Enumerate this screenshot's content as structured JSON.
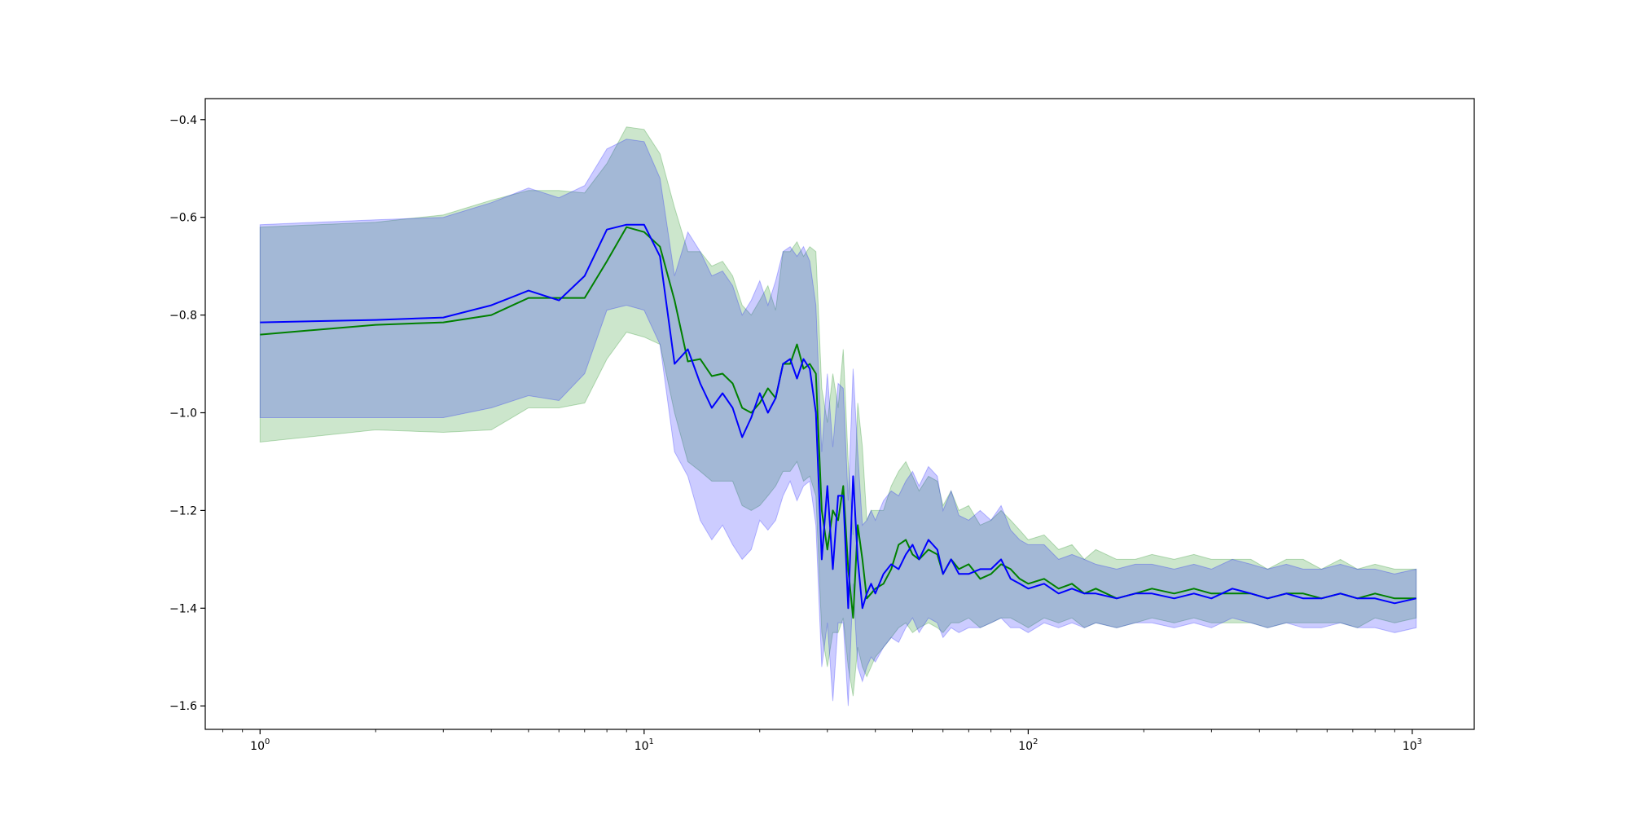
{
  "chart_data": {
    "type": "line",
    "title": "",
    "xlabel": "",
    "ylabel": "",
    "xscale": "log",
    "xlim": [
      0.72,
      1450
    ],
    "ylim": [
      -1.648,
      -0.357
    ],
    "grid": false,
    "legend": "none",
    "x_ticks": [
      1,
      10,
      100,
      1000
    ],
    "x_tick_labels": [
      {
        "base": "10",
        "exp": "0"
      },
      {
        "base": "10",
        "exp": "1"
      },
      {
        "base": "10",
        "exp": "2"
      },
      {
        "base": "10",
        "exp": "3"
      }
    ],
    "y_ticks": [
      -0.4,
      -0.6,
      -0.8,
      -1.0,
      -1.2,
      -1.4,
      -1.6
    ],
    "y_tick_labels": [
      "−0.4",
      "−0.6",
      "−0.8",
      "−1.0",
      "−1.2",
      "−1.4",
      "−1.6"
    ],
    "series": [
      {
        "color": "#008000",
        "band_color": "#008000",
        "band_opacity": 0.2,
        "x": [
          1,
          2,
          3,
          4,
          5,
          6,
          7,
          8,
          9,
          10,
          11,
          12,
          13,
          14,
          15,
          16,
          17,
          18,
          19,
          20,
          21,
          22,
          23,
          24,
          25,
          26,
          27,
          28,
          29,
          30,
          31,
          32,
          33,
          34,
          35,
          36,
          37,
          38,
          39,
          40,
          42,
          44,
          46,
          48,
          50,
          52,
          55,
          58,
          60,
          63,
          66,
          70,
          75,
          80,
          85,
          90,
          95,
          100,
          110,
          120,
          130,
          140,
          150,
          170,
          190,
          210,
          240,
          270,
          300,
          340,
          380,
          420,
          470,
          520,
          580,
          650,
          720,
          800,
          900,
          1024
        ],
        "y": [
          -0.84,
          -0.82,
          -0.815,
          -0.8,
          -0.765,
          -0.765,
          -0.765,
          -0.69,
          -0.62,
          -0.63,
          -0.66,
          -0.77,
          -0.895,
          -0.89,
          -0.925,
          -0.92,
          -0.94,
          -0.99,
          -1.0,
          -0.98,
          -0.95,
          -0.97,
          -0.9,
          -0.9,
          -0.86,
          -0.91,
          -0.9,
          -0.92,
          -1.2,
          -1.28,
          -1.2,
          -1.22,
          -1.15,
          -1.32,
          -1.42,
          -1.23,
          -1.3,
          -1.38,
          -1.37,
          -1.36,
          -1.35,
          -1.32,
          -1.27,
          -1.26,
          -1.29,
          -1.3,
          -1.28,
          -1.29,
          -1.33,
          -1.3,
          -1.32,
          -1.31,
          -1.34,
          -1.33,
          -1.31,
          -1.32,
          -1.34,
          -1.35,
          -1.34,
          -1.36,
          -1.35,
          -1.37,
          -1.36,
          -1.38,
          -1.37,
          -1.36,
          -1.37,
          -1.36,
          -1.37,
          -1.37,
          -1.37,
          -1.38,
          -1.37,
          -1.37,
          -1.38,
          -1.37,
          -1.38,
          -1.37,
          -1.38,
          -1.38
        ],
        "lower": [
          -1.06,
          -1.035,
          -1.04,
          -1.035,
          -0.99,
          -0.99,
          -0.98,
          -0.89,
          -0.835,
          -0.845,
          -0.86,
          -1.0,
          -1.1,
          -1.12,
          -1.14,
          -1.14,
          -1.14,
          -1.19,
          -1.2,
          -1.19,
          -1.17,
          -1.15,
          -1.12,
          -1.12,
          -1.1,
          -1.14,
          -1.13,
          -1.17,
          -1.45,
          -1.52,
          -1.45,
          -1.45,
          -1.42,
          -1.52,
          -1.58,
          -1.48,
          -1.52,
          -1.54,
          -1.52,
          -1.5,
          -1.48,
          -1.46,
          -1.44,
          -1.43,
          -1.45,
          -1.44,
          -1.43,
          -1.44,
          -1.45,
          -1.43,
          -1.43,
          -1.42,
          -1.44,
          -1.43,
          -1.42,
          -1.42,
          -1.43,
          -1.44,
          -1.42,
          -1.43,
          -1.42,
          -1.44,
          -1.43,
          -1.44,
          -1.43,
          -1.42,
          -1.43,
          -1.42,
          -1.43,
          -1.43,
          -1.43,
          -1.44,
          -1.43,
          -1.43,
          -1.43,
          -1.43,
          -1.44,
          -1.42,
          -1.43,
          -1.42
        ],
        "upper": [
          -0.62,
          -0.61,
          -0.595,
          -0.565,
          -0.545,
          -0.545,
          -0.55,
          -0.49,
          -0.415,
          -0.42,
          -0.47,
          -0.58,
          -0.67,
          -0.67,
          -0.7,
          -0.69,
          -0.72,
          -0.78,
          -0.8,
          -0.77,
          -0.74,
          -0.79,
          -0.67,
          -0.67,
          -0.65,
          -0.68,
          -0.66,
          -0.67,
          -0.95,
          -1.02,
          -0.92,
          -0.99,
          -0.87,
          -1.1,
          -1.25,
          -0.98,
          -1.07,
          -1.22,
          -1.2,
          -1.2,
          -1.2,
          -1.15,
          -1.12,
          -1.1,
          -1.13,
          -1.16,
          -1.13,
          -1.14,
          -1.19,
          -1.16,
          -1.2,
          -1.19,
          -1.23,
          -1.22,
          -1.2,
          -1.22,
          -1.24,
          -1.26,
          -1.25,
          -1.28,
          -1.27,
          -1.3,
          -1.28,
          -1.3,
          -1.3,
          -1.29,
          -1.3,
          -1.29,
          -1.3,
          -1.3,
          -1.3,
          -1.32,
          -1.3,
          -1.3,
          -1.32,
          -1.3,
          -1.32,
          -1.31,
          -1.32,
          -1.32
        ]
      },
      {
        "color": "#0000ff",
        "band_color": "#0000ff",
        "band_opacity": 0.2,
        "x": [
          1,
          2,
          3,
          4,
          5,
          6,
          7,
          8,
          9,
          10,
          11,
          12,
          13,
          14,
          15,
          16,
          17,
          18,
          19,
          20,
          21,
          22,
          23,
          24,
          25,
          26,
          27,
          28,
          29,
          30,
          31,
          32,
          33,
          34,
          35,
          36,
          37,
          38,
          39,
          40,
          42,
          44,
          46,
          48,
          50,
          52,
          55,
          58,
          60,
          63,
          66,
          70,
          75,
          80,
          85,
          90,
          95,
          100,
          110,
          120,
          130,
          140,
          150,
          170,
          190,
          210,
          240,
          270,
          300,
          340,
          380,
          420,
          470,
          520,
          580,
          650,
          720,
          800,
          900,
          1024
        ],
        "y": [
          -0.815,
          -0.81,
          -0.805,
          -0.78,
          -0.75,
          -0.77,
          -0.72,
          -0.625,
          -0.615,
          -0.615,
          -0.68,
          -0.9,
          -0.87,
          -0.94,
          -0.99,
          -0.96,
          -0.99,
          -1.05,
          -1.01,
          -0.96,
          -1.0,
          -0.97,
          -0.9,
          -0.89,
          -0.93,
          -0.89,
          -0.91,
          -1.0,
          -1.3,
          -1.15,
          -1.32,
          -1.17,
          -1.17,
          -1.4,
          -1.13,
          -1.3,
          -1.4,
          -1.37,
          -1.35,
          -1.37,
          -1.33,
          -1.31,
          -1.32,
          -1.29,
          -1.27,
          -1.3,
          -1.26,
          -1.28,
          -1.33,
          -1.3,
          -1.33,
          -1.33,
          -1.32,
          -1.32,
          -1.3,
          -1.34,
          -1.35,
          -1.36,
          -1.35,
          -1.37,
          -1.36,
          -1.37,
          -1.37,
          -1.38,
          -1.37,
          -1.37,
          -1.38,
          -1.37,
          -1.38,
          -1.36,
          -1.37,
          -1.38,
          -1.37,
          -1.38,
          -1.38,
          -1.37,
          -1.38,
          -1.38,
          -1.39,
          -1.38
        ],
        "lower": [
          -1.01,
          -1.01,
          -1.01,
          -0.99,
          -0.965,
          -0.975,
          -0.92,
          -0.79,
          -0.78,
          -0.79,
          -0.86,
          -1.08,
          -1.13,
          -1.22,
          -1.26,
          -1.23,
          -1.27,
          -1.3,
          -1.28,
          -1.22,
          -1.24,
          -1.22,
          -1.17,
          -1.14,
          -1.18,
          -1.15,
          -1.14,
          -1.23,
          -1.52,
          -1.43,
          -1.59,
          -1.43,
          -1.43,
          -1.6,
          -1.35,
          -1.52,
          -1.55,
          -1.52,
          -1.5,
          -1.51,
          -1.48,
          -1.46,
          -1.47,
          -1.44,
          -1.42,
          -1.45,
          -1.42,
          -1.43,
          -1.46,
          -1.44,
          -1.45,
          -1.44,
          -1.44,
          -1.43,
          -1.42,
          -1.44,
          -1.44,
          -1.45,
          -1.43,
          -1.44,
          -1.43,
          -1.44,
          -1.43,
          -1.44,
          -1.43,
          -1.43,
          -1.44,
          -1.43,
          -1.44,
          -1.42,
          -1.43,
          -1.44,
          -1.43,
          -1.44,
          -1.44,
          -1.43,
          -1.44,
          -1.44,
          -1.45,
          -1.44
        ],
        "upper": [
          -0.615,
          -0.605,
          -0.6,
          -0.57,
          -0.54,
          -0.56,
          -0.535,
          -0.46,
          -0.44,
          -0.445,
          -0.52,
          -0.72,
          -0.63,
          -0.67,
          -0.72,
          -0.71,
          -0.74,
          -0.8,
          -0.77,
          -0.73,
          -0.78,
          -0.73,
          -0.67,
          -0.66,
          -0.68,
          -0.66,
          -0.69,
          -0.78,
          -1.08,
          -0.92,
          -1.07,
          -0.94,
          -0.95,
          -1.18,
          -0.91,
          -1.08,
          -1.23,
          -1.22,
          -1.2,
          -1.22,
          -1.18,
          -1.16,
          -1.17,
          -1.14,
          -1.12,
          -1.15,
          -1.11,
          -1.13,
          -1.2,
          -1.16,
          -1.21,
          -1.22,
          -1.2,
          -1.22,
          -1.19,
          -1.24,
          -1.26,
          -1.27,
          -1.27,
          -1.3,
          -1.29,
          -1.3,
          -1.31,
          -1.32,
          -1.31,
          -1.31,
          -1.32,
          -1.31,
          -1.32,
          -1.3,
          -1.31,
          -1.32,
          -1.31,
          -1.32,
          -1.32,
          -1.31,
          -1.32,
          -1.32,
          -1.33,
          -1.32
        ]
      }
    ]
  }
}
